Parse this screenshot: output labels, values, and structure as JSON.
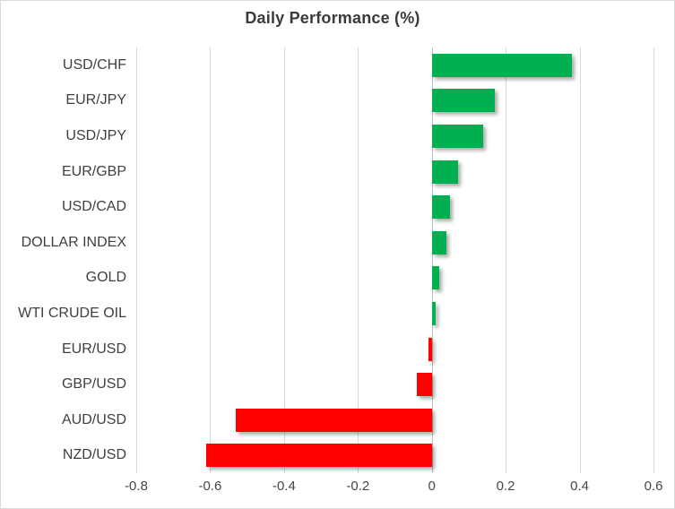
{
  "chart_data": {
    "type": "bar",
    "orientation": "horizontal",
    "title": "Daily Performance (%)",
    "categories": [
      "USD/CHF",
      "EUR/JPY",
      "USD/JPY",
      "EUR/GBP",
      "USD/CAD",
      "DOLLAR INDEX",
      "GOLD",
      "WTI CRUDE OIL",
      "EUR/USD",
      "GBP/USD",
      "AUD/USD",
      "NZD/USD"
    ],
    "values": [
      0.38,
      0.17,
      0.14,
      0.07,
      0.05,
      0.04,
      0.02,
      0.01,
      -0.01,
      -0.04,
      -0.53,
      -0.61
    ],
    "xlabel": "",
    "ylabel": "",
    "xlim": [
      -0.8,
      0.6
    ],
    "xticks": [
      -0.8,
      -0.6,
      -0.4,
      -0.2,
      0,
      0.2,
      0.4,
      0.6
    ],
    "xtick_labels": [
      "-0.8",
      "-0.6",
      "-0.4",
      "-0.2",
      "0",
      "0.2",
      "0.4",
      "0.6"
    ],
    "grid": "vertical-gridlines-on",
    "legend": "none",
    "colors": {
      "positive": "#00B050",
      "negative": "#FF0000",
      "gridline": "#D9D9D9",
      "zero_line": "#BFBFBF",
      "label_text": "#3F3F3F",
      "title_text": "#3B3B3B",
      "border": "#D9D9D9"
    }
  }
}
